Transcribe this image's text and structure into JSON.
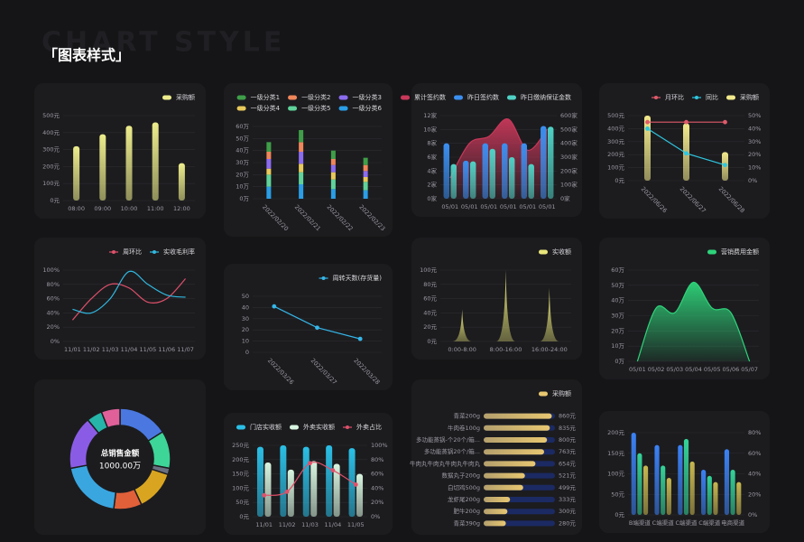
{
  "header": {
    "watermark": "CHART STYLE",
    "title": "「图表样式」"
  },
  "chart_data": [
    {
      "type": "bar",
      "categories": [
        "08:00",
        "09:00",
        "10:00",
        "11:00",
        "12:00"
      ],
      "series": [
        {
          "name": "采购额",
          "color": "#ecec8c",
          "values": [
            320,
            390,
            440,
            460,
            220
          ]
        }
      ],
      "ylim": [
        0,
        500
      ],
      "yticks": [
        {
          "value": 0,
          "label": "0元"
        },
        {
          "value": 100,
          "label": "100元"
        },
        {
          "value": 200,
          "label": "200元"
        },
        {
          "value": 300,
          "label": "300元"
        },
        {
          "value": 400,
          "label": "400元"
        },
        {
          "value": 500,
          "label": "500元"
        }
      ],
      "grid": true
    },
    {
      "type": "stacked_bar",
      "categories": [
        "2022/02/20",
        "2022/02/21",
        "2022/02/22",
        "2022/02/23"
      ],
      "series": [
        {
          "name": "一级分类1",
          "color": "#3f9e48",
          "values": [
            8,
            10,
            7,
            6
          ]
        },
        {
          "name": "一级分类2",
          "color": "#f0865a",
          "values": [
            6,
            8,
            5,
            5
          ]
        },
        {
          "name": "一级分类3",
          "color": "#8b6cf0",
          "values": [
            8,
            10,
            6,
            5
          ]
        },
        {
          "name": "一级分类4",
          "color": "#e8c95a",
          "values": [
            5,
            7,
            6,
            4
          ]
        },
        {
          "name": "一级分类5",
          "color": "#5fd39a",
          "values": [
            10,
            10,
            8,
            7
          ]
        },
        {
          "name": "一级分类6",
          "color": "#2a9ee6",
          "values": [
            10,
            12,
            8,
            7
          ]
        }
      ],
      "ylim": [
        0,
        60
      ],
      "yticks": [
        {
          "value": 0,
          "label": "0万"
        },
        {
          "value": 10,
          "label": "10万"
        },
        {
          "value": 20,
          "label": "20万"
        },
        {
          "value": 30,
          "label": "30万"
        },
        {
          "value": 40,
          "label": "40万"
        },
        {
          "value": 50,
          "label": "50万"
        },
        {
          "value": 60,
          "label": "60万"
        }
      ],
      "grid": true
    },
    {
      "type": "combo",
      "categories": [
        "05/01",
        "05/01",
        "05/01",
        "05/01",
        "05/01",
        "05/01"
      ],
      "smooth": true,
      "series": [
        {
          "name": "累计签约数",
          "color": "#c8385a",
          "kind": "area",
          "values": [
            3,
            8,
            9,
            11.5,
            7,
            10
          ]
        },
        {
          "name": "昨日签约数",
          "color": "#3b8ff0",
          "kind": "bar",
          "values": [
            8,
            5.5,
            8,
            8,
            8,
            10.5
          ]
        },
        {
          "name": "昨日缴纳保证金数",
          "color": "#4fd1c5",
          "kind": "bar",
          "axis": "y2",
          "values": [
            250,
            270,
            360,
            300,
            250,
            520
          ]
        }
      ],
      "ylim": [
        0,
        12
      ],
      "yticks": [
        {
          "value": 0,
          "label": "0家"
        },
        {
          "value": 2,
          "label": "2家"
        },
        {
          "value": 4,
          "label": "4家"
        },
        {
          "value": 6,
          "label": "6家"
        },
        {
          "value": 8,
          "label": "8家"
        },
        {
          "value": 10,
          "label": "10家"
        },
        {
          "value": 12,
          "label": "12家"
        }
      ],
      "y2lim": [
        0,
        600
      ],
      "y2ticks": [
        {
          "value": 0,
          "label": "0家"
        },
        {
          "value": 100,
          "label": "100家"
        },
        {
          "value": 200,
          "label": "200家"
        },
        {
          "value": 300,
          "label": "300家"
        },
        {
          "value": 400,
          "label": "400家"
        },
        {
          "value": 500,
          "label": "500家"
        },
        {
          "value": 600,
          "label": "600家"
        }
      ],
      "grid": true
    },
    {
      "type": "combo",
      "categories": [
        "2022/06/26",
        "2022/06/27",
        "2022/06/28"
      ],
      "markers": true,
      "series": [
        {
          "name": "月环比",
          "color": "#e05a6a",
          "kind": "line",
          "axis": "y2",
          "values": [
            45,
            45,
            45
          ]
        },
        {
          "name": "同比",
          "color": "#2ec7e0",
          "kind": "line",
          "axis": "y2",
          "values": [
            40,
            21,
            12
          ]
        },
        {
          "name": "采购额",
          "color": "#f2e98c",
          "kind": "bar",
          "values": [
            500,
            440,
            220
          ]
        }
      ],
      "ylim": [
        0,
        500
      ],
      "yticks": [
        {
          "value": 0,
          "label": "0元"
        },
        {
          "value": 100,
          "label": "100元"
        },
        {
          "value": 200,
          "label": "200元"
        },
        {
          "value": 300,
          "label": "300元"
        },
        {
          "value": 400,
          "label": "400元"
        },
        {
          "value": 500,
          "label": "500元"
        }
      ],
      "y2lim": [
        0,
        50
      ],
      "y2ticks": [
        {
          "value": 0,
          "label": "0%"
        },
        {
          "value": 10,
          "label": "10%"
        },
        {
          "value": 20,
          "label": "20%"
        },
        {
          "value": 30,
          "label": "30%"
        },
        {
          "value": 40,
          "label": "40%"
        },
        {
          "value": 50,
          "label": "50%"
        }
      ],
      "grid": true
    },
    {
      "type": "line",
      "categories": [
        "11/01",
        "11/02",
        "11/03",
        "11/04",
        "11/05",
        "11/06",
        "11/07"
      ],
      "smooth": true,
      "series": [
        {
          "name": "周环比",
          "color": "#e0506a",
          "values": [
            30,
            60,
            80,
            75,
            55,
            60,
            88
          ]
        },
        {
          "name": "实收毛利率",
          "color": "#30b8e0",
          "values": [
            45,
            40,
            60,
            98,
            80,
            65,
            62
          ]
        }
      ],
      "ylim": [
        0,
        100
      ],
      "yticks": [
        {
          "value": 0,
          "label": "0%"
        },
        {
          "value": 20,
          "label": "20%"
        },
        {
          "value": 40,
          "label": "40%"
        },
        {
          "value": 60,
          "label": "60%"
        },
        {
          "value": 80,
          "label": "80%"
        },
        {
          "value": 100,
          "label": "100%"
        }
      ],
      "grid": true
    },
    {
      "type": "line",
      "categories": [
        "2022/03/26",
        "2022/03/27",
        "2022/03/28"
      ],
      "markers": true,
      "series": [
        {
          "name": "周转天数(存货量)",
          "color": "#35b6e8",
          "values": [
            41,
            22,
            12
          ]
        }
      ],
      "ylim": [
        0,
        50
      ],
      "yticks": [
        0,
        10,
        20,
        30,
        40,
        50
      ],
      "grid": true
    },
    {
      "type": "peak",
      "categories": [
        "0:00-8:00",
        "8:00-16:00",
        "16:00-24:00"
      ],
      "series": [
        {
          "name": "实收额",
          "color": "#e8e67a",
          "values": [
            45,
            100,
            75
          ]
        }
      ],
      "ylim": [
        0,
        100
      ],
      "yticks": [
        {
          "value": 0,
          "label": "0元"
        },
        {
          "value": 20,
          "label": "20元"
        },
        {
          "value": 40,
          "label": "40元"
        },
        {
          "value": 60,
          "label": "60元"
        },
        {
          "value": 80,
          "label": "80元"
        },
        {
          "value": 100,
          "label": "100元"
        }
      ],
      "grid": true
    },
    {
      "type": "area",
      "categories": [
        "05/01",
        "05/02",
        "05/03",
        "05/04",
        "05/05",
        "05/06",
        "05/07"
      ],
      "smooth": true,
      "series": [
        {
          "name": "营销费用金额",
          "color": "#2ed47a",
          "values": [
            0,
            35,
            32,
            52,
            35,
            32,
            0
          ]
        }
      ],
      "ylim": [
        0,
        60
      ],
      "yticks": [
        {
          "value": 0,
          "label": "0万"
        },
        {
          "value": 10,
          "label": "10万"
        },
        {
          "value": 20,
          "label": "20万"
        },
        {
          "value": 30,
          "label": "30万"
        },
        {
          "value": 40,
          "label": "40万"
        },
        {
          "value": 50,
          "label": "50万"
        },
        {
          "value": 60,
          "label": "60万"
        }
      ],
      "grid": true
    },
    {
      "type": "pie",
      "center_title": "总销售金额",
      "center_value": "1000.00万",
      "values": [
        16,
        12,
        2,
        13,
        9,
        20,
        17,
        5,
        6
      ],
      "colors": [
        "#4a78e0",
        "#3dd598",
        "#6a7080",
        "#d9a520",
        "#e0603a",
        "#3aa6e0",
        "#8a5ce6",
        "#26b5a8",
        "#e0609a"
      ]
    },
    {
      "type": "combo",
      "categories": [
        "11/01",
        "11/02",
        "11/03",
        "11/04",
        "11/05"
      ],
      "smooth": true,
      "markers": true,
      "series": [
        {
          "name": "门店实收额",
          "color": "#2bbfe6",
          "kind": "bar",
          "values": [
            245,
            250,
            245,
            250,
            240
          ]
        },
        {
          "name": "外卖实收额",
          "color": "#d8f5e0",
          "kind": "bar",
          "values": [
            190,
            165,
            195,
            185,
            150
          ]
        },
        {
          "name": "外卖占比",
          "color": "#e0506a",
          "kind": "line",
          "axis": "y2",
          "values": [
            30,
            35,
            75,
            65,
            45
          ]
        }
      ],
      "ylim": [
        0,
        250
      ],
      "yticks": [
        {
          "value": 0,
          "label": "0元"
        },
        {
          "value": 50,
          "label": "50元"
        },
        {
          "value": 100,
          "label": "100元"
        },
        {
          "value": 150,
          "label": "150元"
        },
        {
          "value": 200,
          "label": "200元"
        },
        {
          "value": 250,
          "label": "250元"
        }
      ],
      "y2lim": [
        0,
        100
      ],
      "y2ticks": [
        {
          "value": 0,
          "label": "0%"
        },
        {
          "value": 20,
          "label": "20%"
        },
        {
          "value": 40,
          "label": "40%"
        },
        {
          "value": 60,
          "label": "60%"
        },
        {
          "value": 80,
          "label": "80%"
        },
        {
          "value": 100,
          "label": "100%"
        }
      ],
      "grid": true
    },
    {
      "type": "barh",
      "categories": [
        "青菜200g",
        "牛肉卷100g",
        "多功能蒸锅-个20个/箱...",
        "多功能蒸锅20个/箱...",
        "牛肉丸牛肉丸牛肉丸牛肉丸",
        "数据丸子200g",
        "白切鸡500g",
        "龙虾尾200g",
        "肥牛200g",
        "青菜390g"
      ],
      "series": [
        {
          "name": "采购额",
          "color": "#e8c770",
          "values": [
            860,
            835,
            800,
            763,
            654,
            521,
            499,
            333,
            300,
            280
          ],
          "value_labels": [
            "860元",
            "835元",
            "800元",
            "763元",
            "654元",
            "521元",
            "499元",
            "333元",
            "300元",
            "280元"
          ]
        }
      ],
      "xlim": [
        0,
        900
      ]
    },
    {
      "type": "bar",
      "categories": [
        "B端渠道",
        "C端渠道",
        "C端渠道",
        "C端渠道",
        "电商渠道"
      ],
      "series": [
        {
          "color": "#3b82f6",
          "values": [
            200,
            170,
            170,
            110,
            160
          ]
        },
        {
          "color": "#34d399",
          "values": [
            150,
            120,
            185,
            95,
            110
          ]
        },
        {
          "color": "#c8b850",
          "values": [
            120,
            90,
            130,
            80,
            80
          ]
        }
      ],
      "ylim": [
        0,
        200
      ],
      "yticks": [
        {
          "value": 0,
          "label": "0元"
        },
        {
          "value": 50,
          "label": "50元"
        },
        {
          "value": 100,
          "label": "100元"
        },
        {
          "value": 150,
          "label": "150元"
        },
        {
          "value": 200,
          "label": "200元"
        }
      ],
      "y2lim": [
        0,
        80
      ],
      "y2ticks": [
        {
          "value": 0,
          "label": "0%"
        },
        {
          "value": 20,
          "label": "20%"
        },
        {
          "value": 40,
          "label": "40%"
        },
        {
          "value": 60,
          "label": "60%"
        },
        {
          "value": 80,
          "label": "80%"
        }
      ],
      "grid": true
    }
  ]
}
